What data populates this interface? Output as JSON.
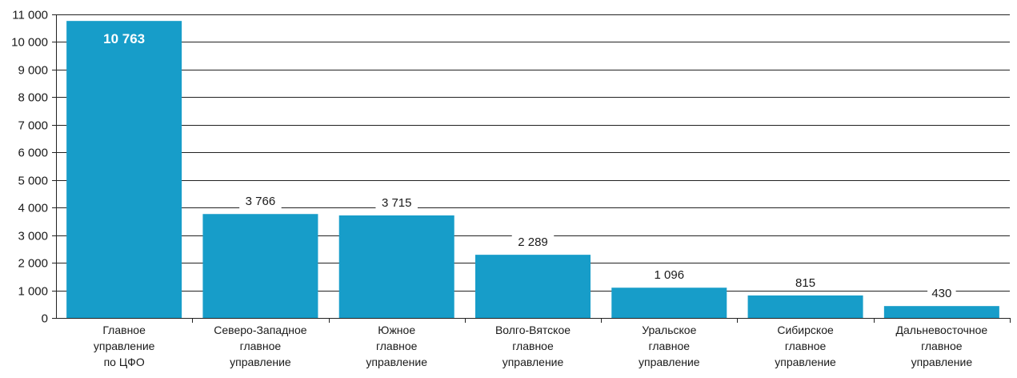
{
  "chart_data": {
    "type": "bar",
    "categories": [
      [
        "Главное",
        "управление",
        "по ЦФО"
      ],
      [
        "Северо-Западное",
        "главное",
        "управление"
      ],
      [
        "Южное",
        "главное",
        "управление"
      ],
      [
        "Волго-Вятское",
        "главное",
        "управление"
      ],
      [
        "Уральское",
        "главное",
        "управление"
      ],
      [
        "Сибирское",
        "главное",
        "управление"
      ],
      [
        "Дальневосточное",
        "главное",
        "управление"
      ]
    ],
    "values": [
      10763,
      3766,
      3715,
      2289,
      1096,
      815,
      430
    ],
    "value_labels": [
      "10 763",
      "3 766",
      "3 715",
      "2 289",
      "1 096",
      "815",
      "430"
    ],
    "yticks": [
      0,
      1000,
      2000,
      3000,
      4000,
      5000,
      6000,
      7000,
      8000,
      9000,
      10000,
      11000
    ],
    "ytick_labels": [
      "0",
      "1 000",
      "2 000",
      "3 000",
      "4 000",
      "5 000",
      "6 000",
      "7 000",
      "8 000",
      "9 000",
      "10 000",
      "11 000"
    ],
    "ylim": [
      0,
      11000
    ],
    "grid": true,
    "bar_color": "#179dc9",
    "grid_color": "#222222"
  }
}
